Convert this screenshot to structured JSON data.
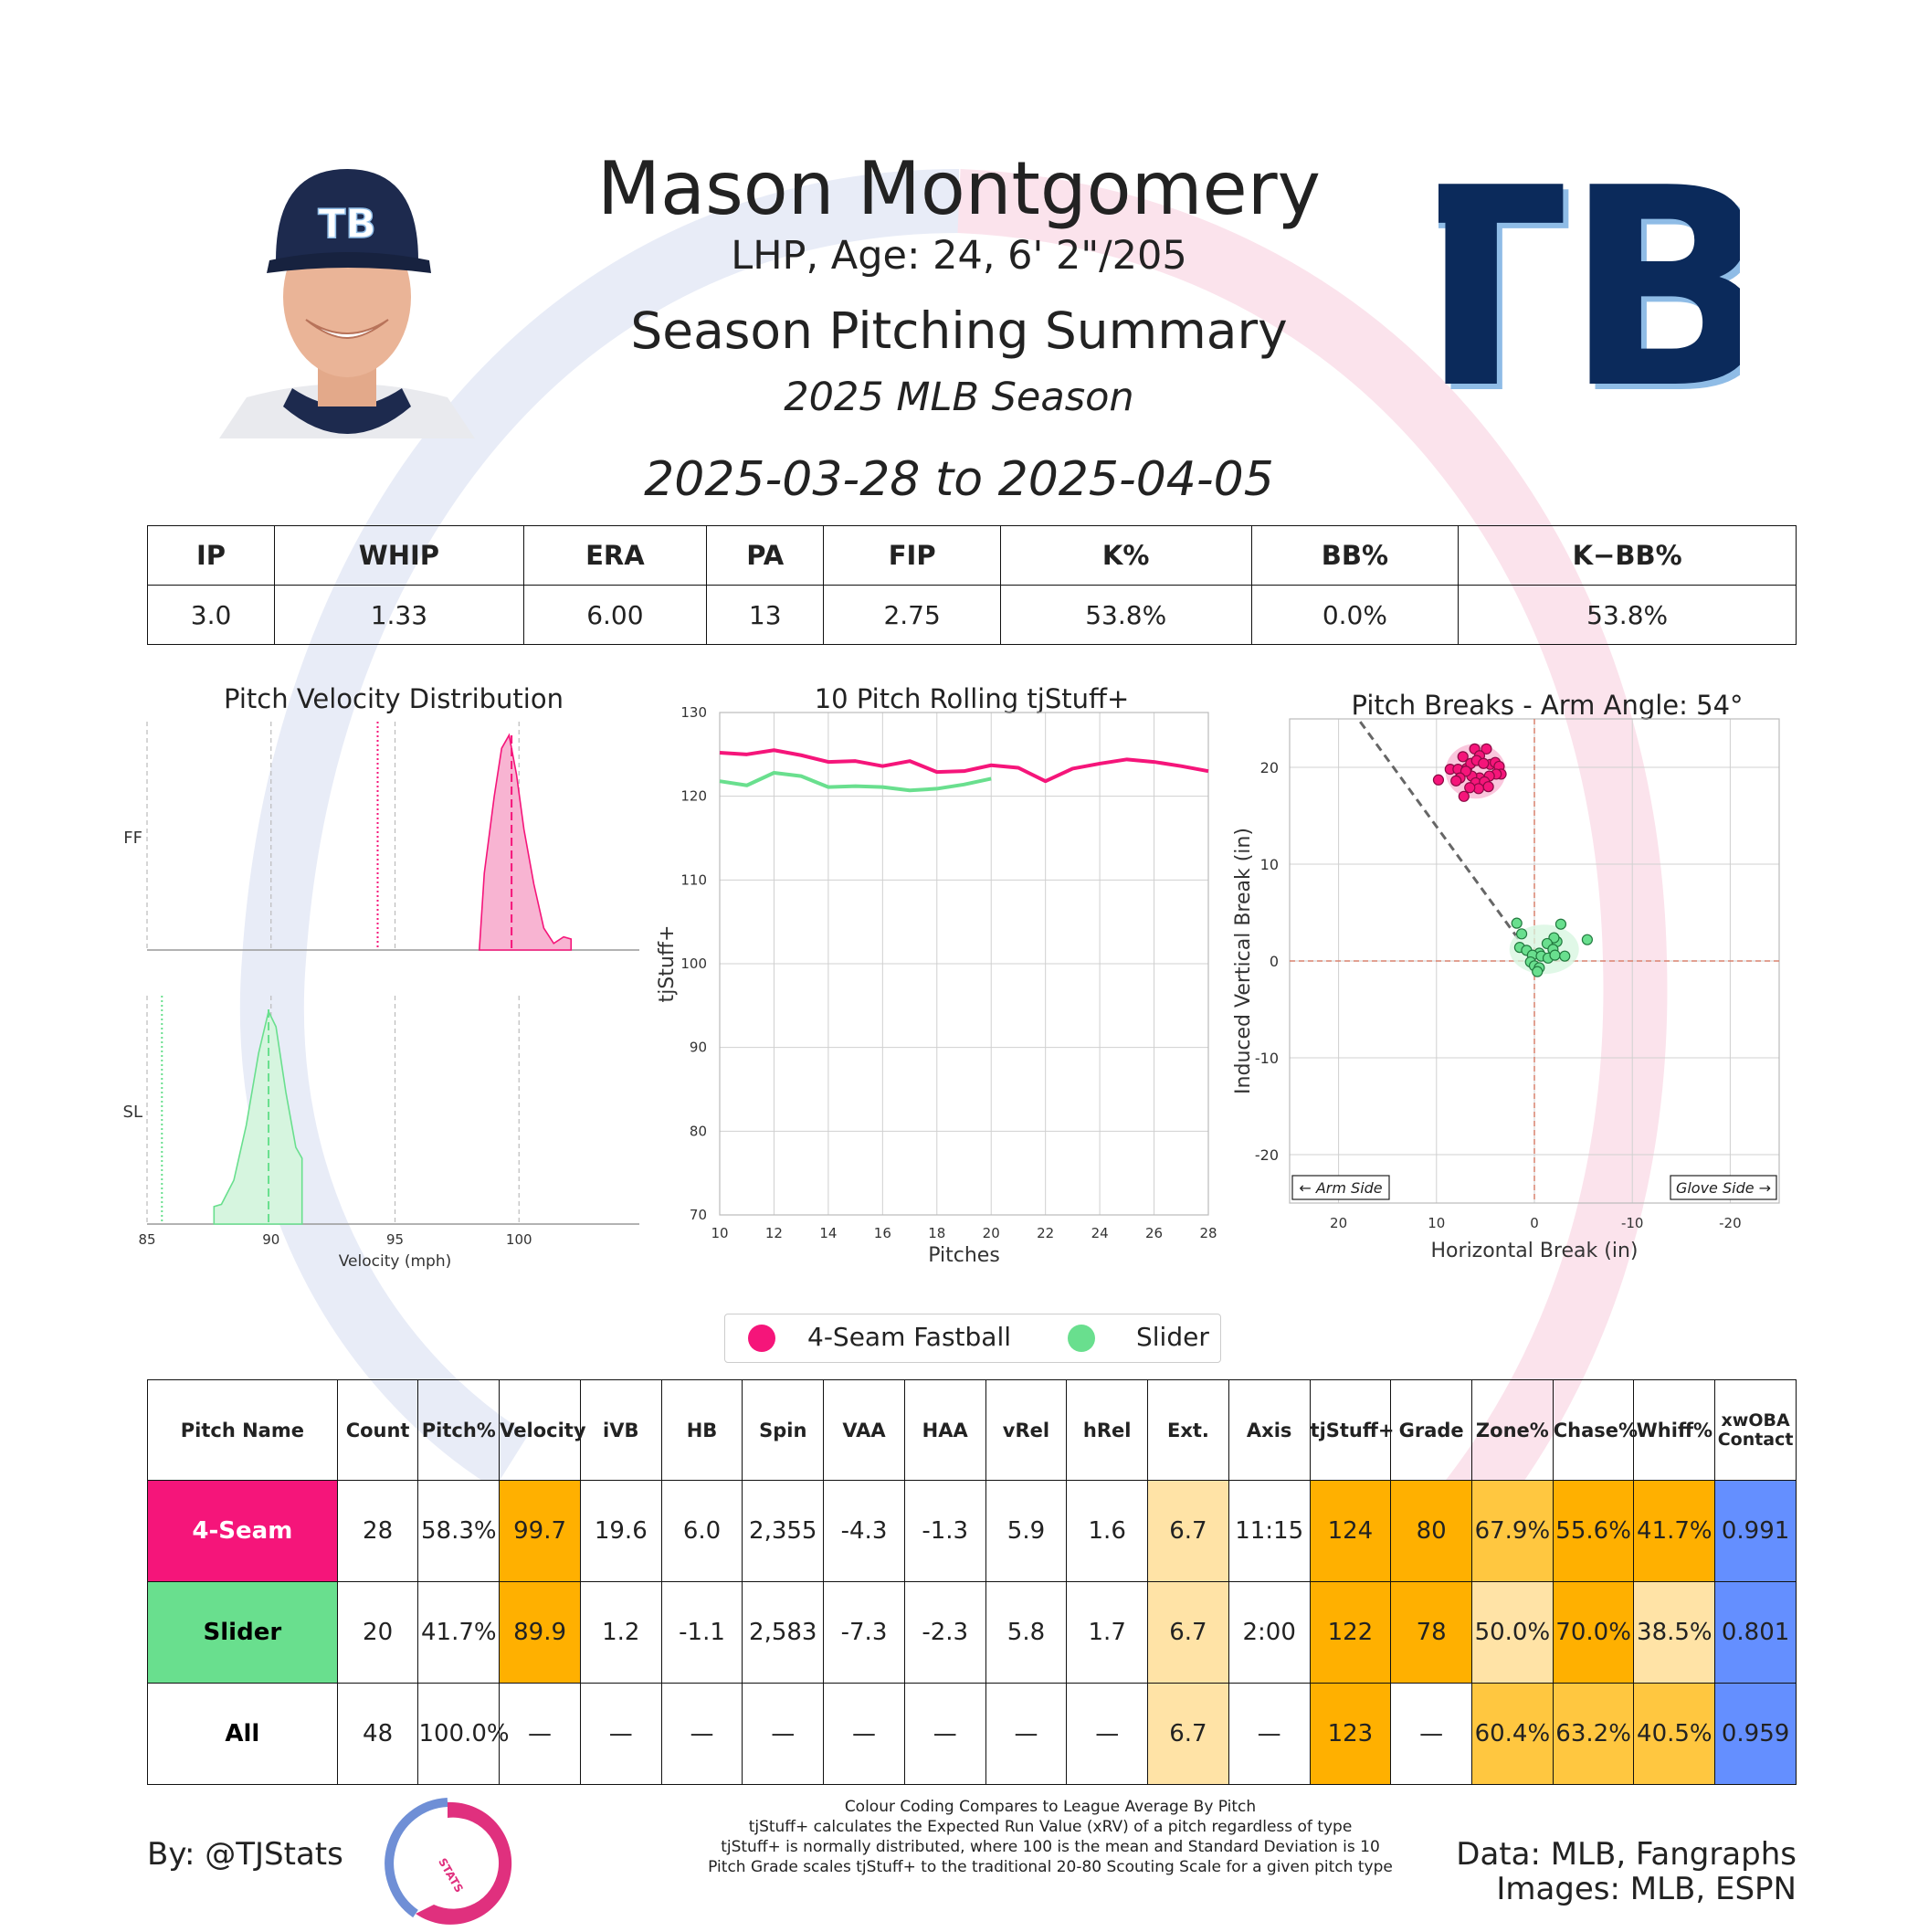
{
  "header": {
    "player_name": "Mason Montgomery",
    "bio": "LHP, Age: 24, 6' 2\"/205",
    "summary_title": "Season Pitching Summary",
    "season": "2025 MLB Season",
    "date_range": "2025-03-28 to 2025-04-05",
    "team_logo_text": "TB",
    "cap_logo_text": "TB"
  },
  "summary_table": {
    "headers": [
      "IP",
      "WHIP",
      "ERA",
      "PA",
      "FIP",
      "K%",
      "BB%",
      "K−BB%"
    ],
    "values": [
      "3.0",
      "1.33",
      "6.00",
      "13",
      "2.75",
      "53.8%",
      "0.0%",
      "53.8%"
    ]
  },
  "colors": {
    "fastball": "#F5157A",
    "slider": "#69DF8E",
    "orange": "#FFB000",
    "mid_orange": "#FFC740",
    "light_orange": "#FFE3A6",
    "blue": "#648FFF"
  },
  "legend": {
    "items": [
      {
        "label": "4-Seam Fastball",
        "color": "#F5157A"
      },
      {
        "label": "Slider",
        "color": "#69DF8E"
      }
    ]
  },
  "chart_data": [
    {
      "type": "area",
      "title": "Pitch Velocity Distribution",
      "xlabel": "Velocity (mph)",
      "xlim": [
        85,
        105
      ],
      "xticks": [
        85,
        90,
        95,
        100
      ],
      "rows": [
        "FF",
        "SL"
      ],
      "series": [
        {
          "name": "FF",
          "x": [
            98.4,
            98.6,
            99.0,
            99.3,
            99.6,
            99.9,
            100.2,
            100.6,
            101.0,
            101.4,
            101.8,
            102.1
          ],
          "density": [
            0.0,
            0.35,
            0.7,
            0.92,
            0.98,
            0.8,
            0.55,
            0.3,
            0.1,
            0.03,
            0.06,
            0.05
          ],
          "mean": 99.7,
          "league_avg": 94.3
        },
        {
          "name": "SL",
          "x": [
            87.7,
            88.0,
            88.5,
            89.0,
            89.5,
            89.9,
            90.2,
            90.6,
            91.0,
            91.25
          ],
          "density": [
            0.08,
            0.09,
            0.2,
            0.45,
            0.78,
            0.97,
            0.9,
            0.6,
            0.35,
            0.3
          ],
          "mean": 89.9,
          "league_avg": 85.6
        }
      ]
    },
    {
      "type": "line",
      "title": "10 Pitch Rolling tjStuff+",
      "xlabel": "Pitches",
      "ylabel": "tjStuff+",
      "xlim": [
        10,
        28
      ],
      "ylim": [
        70,
        130
      ],
      "xticks": [
        10,
        12,
        14,
        16,
        18,
        20,
        22,
        24,
        26,
        28
      ],
      "yticks": [
        70,
        80,
        90,
        100,
        110,
        120,
        130
      ],
      "series": [
        {
          "name": "4-Seam Fastball",
          "x": [
            10,
            11,
            12,
            13,
            14,
            15,
            16,
            17,
            18,
            19,
            20,
            21,
            22,
            23,
            24,
            25,
            26,
            27,
            28
          ],
          "values": [
            125.2,
            125.0,
            125.5,
            124.9,
            124.1,
            124.2,
            123.6,
            124.2,
            122.9,
            123.0,
            123.7,
            123.4,
            121.8,
            123.3,
            123.9,
            124.4,
            124.1,
            123.6,
            123.0
          ]
        },
        {
          "name": "Slider",
          "x": [
            10,
            11,
            12,
            13,
            14,
            15,
            16,
            17,
            18,
            19,
            20
          ],
          "values": [
            121.8,
            121.3,
            122.8,
            122.4,
            121.1,
            121.2,
            121.1,
            120.7,
            120.9,
            121.4,
            122.1
          ]
        }
      ]
    },
    {
      "type": "scatter",
      "title": "Pitch Breaks - Arm Angle: 54°",
      "xlabel": "Horizontal Break (in)",
      "ylabel": "Induced Vertical Break (in)",
      "xlim": [
        25,
        -25
      ],
      "ylim": [
        -25,
        25
      ],
      "xticks": [
        20,
        10,
        0,
        -10,
        -20
      ],
      "yticks": [
        20,
        10,
        0,
        -10,
        -20
      ],
      "annotations": [
        "← Arm Side",
        "Glove Side →"
      ],
      "arm_angle_line": {
        "x": [
          0,
          18
        ],
        "y": [
          0,
          25
        ]
      },
      "series": [
        {
          "name": "4-Seam Fastball",
          "points": [
            [
              6.1,
              21.9
            ],
            [
              4.9,
              21.9
            ],
            [
              7.3,
              21.1
            ],
            [
              5.6,
              21.2
            ],
            [
              4.5,
              20.3
            ],
            [
              8.6,
              19.8
            ],
            [
              7.8,
              19.8
            ],
            [
              6.9,
              19.9
            ],
            [
              6.5,
              20.4
            ],
            [
              5.9,
              20.7
            ],
            [
              5.2,
              20.4
            ],
            [
              4.0,
              20.5
            ],
            [
              3.6,
              20.1
            ],
            [
              3.4,
              19.3
            ],
            [
              3.9,
              19.3
            ],
            [
              4.6,
              19.1
            ],
            [
              5.6,
              18.9
            ],
            [
              6.4,
              19.1
            ],
            [
              7.0,
              19.6
            ],
            [
              7.6,
              18.9
            ],
            [
              8.0,
              18.6
            ],
            [
              9.8,
              18.7
            ],
            [
              6.0,
              18.4
            ],
            [
              5.1,
              18.5
            ],
            [
              4.7,
              18.0
            ],
            [
              5.7,
              17.8
            ],
            [
              6.6,
              17.9
            ],
            [
              7.2,
              17.0
            ]
          ],
          "center": [
            6.0,
            19.6
          ]
        },
        {
          "name": "Slider",
          "points": [
            [
              1.8,
              3.9
            ],
            [
              -2.7,
              3.8
            ],
            [
              1.3,
              2.8
            ],
            [
              -2.3,
              2.0
            ],
            [
              -2.0,
              2.4
            ],
            [
              -5.4,
              2.2
            ],
            [
              -1.3,
              1.8
            ],
            [
              1.5,
              1.4
            ],
            [
              0.8,
              1.1
            ],
            [
              -1.9,
              1.2
            ],
            [
              -0.5,
              0.8
            ],
            [
              0.2,
              0.6
            ],
            [
              -0.7,
              0.5
            ],
            [
              -1.4,
              0.3
            ],
            [
              -2.1,
              0.6
            ],
            [
              -3.1,
              0.5
            ],
            [
              0.4,
              -0.1
            ],
            [
              0.0,
              -0.5
            ],
            [
              -0.5,
              -0.7
            ],
            [
              -0.3,
              -1.1
            ]
          ],
          "center": [
            -1.0,
            1.2
          ]
        }
      ]
    }
  ],
  "pitch_table": {
    "headers": [
      "Pitch Name",
      "Count",
      "Pitch%",
      "Velocity",
      "iVB",
      "HB",
      "Spin",
      "VAA",
      "HAA",
      "vRel",
      "hRel",
      "Ext.",
      "Axis",
      "tjStuff+",
      "Grade",
      "Zone%",
      "Chase%",
      "Whiff%",
      "xwOBA Contact"
    ],
    "rows": [
      {
        "name": "4-Seam",
        "cells": [
          "28",
          "58.3%",
          "99.7",
          "19.6",
          "6.0",
          "2,355",
          "-4.3",
          "-1.3",
          "5.9",
          "1.6",
          "6.7",
          "11:15",
          "124",
          "80",
          "67.9%",
          "55.6%",
          "41.7%",
          "0.991"
        ],
        "bg": [
          "#FFFFFF",
          "#FFFFFF",
          "#FFB000",
          "#FFFFFF",
          "#FFFFFF",
          "#FFFFFF",
          "#FFFFFF",
          "#FFFFFF",
          "#FFFFFF",
          "#FFFFFF",
          "#FFE3A6",
          "#FFFFFF",
          "#FFB000",
          "#FFB000",
          "#FFC740",
          "#FFB000",
          "#FFB000",
          "#648FFF"
        ]
      },
      {
        "name": "Slider",
        "cells": [
          "20",
          "41.7%",
          "89.9",
          "1.2",
          "-1.1",
          "2,583",
          "-7.3",
          "-2.3",
          "5.8",
          "1.7",
          "6.7",
          "2:00",
          "122",
          "78",
          "50.0%",
          "70.0%",
          "38.5%",
          "0.801"
        ],
        "bg": [
          "#FFFFFF",
          "#FFFFFF",
          "#FFB000",
          "#FFFFFF",
          "#FFFFFF",
          "#FFFFFF",
          "#FFFFFF",
          "#FFFFFF",
          "#FFFFFF",
          "#FFFFFF",
          "#FFE3A6",
          "#FFFFFF",
          "#FFB000",
          "#FFB000",
          "#FFE3A6",
          "#FFB000",
          "#FFE3A6",
          "#648FFF"
        ]
      },
      {
        "name": "All",
        "cells": [
          "48",
          "100.0%",
          "—",
          "—",
          "—",
          "—",
          "—",
          "—",
          "—",
          "—",
          "6.7",
          "—",
          "123",
          "—",
          "60.4%",
          "63.2%",
          "40.5%",
          "0.959"
        ],
        "bg": [
          "#FFFFFF",
          "#FFFFFF",
          "#FFFFFF",
          "#FFFFFF",
          "#FFFFFF",
          "#FFFFFF",
          "#FFFFFF",
          "#FFFFFF",
          "#FFFFFF",
          "#FFFFFF",
          "#FFE3A6",
          "#FFFFFF",
          "#FFB000",
          "#FFFFFF",
          "#FFC740",
          "#FFC740",
          "#FFC740",
          "#648FFF"
        ]
      }
    ]
  },
  "footer": {
    "by": "By: @TJStats",
    "notes": [
      "Colour Coding Compares to League Average By Pitch",
      "tjStuff+ calculates the Expected Run Value (xRV) of a pitch regardless of type",
      "tjStuff+ is normally distributed, where 100 is the mean and Standard Deviation is 10",
      "Pitch Grade scales tjStuff+ to the traditional 20-80 Scouting Scale for a given pitch type"
    ],
    "data_source": "Data: MLB, Fangraphs",
    "image_source": "Images: MLB, ESPN",
    "logo_text": "STATS"
  }
}
